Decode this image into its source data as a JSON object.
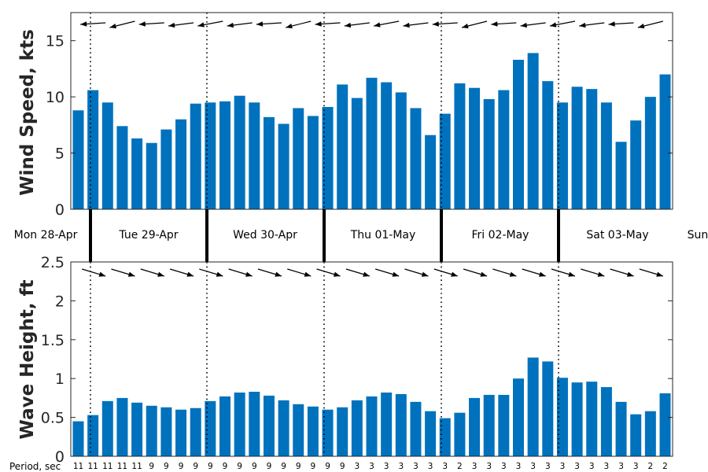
{
  "chart_data": [
    {
      "type": "bar",
      "ylabel": "Wind Speed, kts",
      "ylim": [
        0,
        17.5
      ],
      "yticks": [
        0,
        5,
        10,
        15
      ],
      "bar_color": "#0072BD",
      "values": [
        8.8,
        10.6,
        9.5,
        7.4,
        6.3,
        5.9,
        7.1,
        8.0,
        9.4,
        9.5,
        9.6,
        10.1,
        9.5,
        8.2,
        7.6,
        9.0,
        8.3,
        9.1,
        11.1,
        9.9,
        11.7,
        11.3,
        10.4,
        9.0,
        6.6,
        8.5,
        11.2,
        10.8,
        9.8,
        10.6,
        13.3,
        13.9,
        11.4,
        9.5,
        10.9,
        10.7,
        9.5,
        6.0,
        7.9,
        10.0,
        12.0
      ],
      "direction_arrows": "pointing left (wind from the east)",
      "grid": false
    },
    {
      "type": "bar",
      "ylabel": "Wave Height, ft",
      "ylim": [
        0,
        2.5
      ],
      "yticks": [
        "0",
        "0.5",
        "1",
        "1.5",
        "2",
        "2.5"
      ],
      "bar_color": "#0072BD",
      "values": [
        0.45,
        0.53,
        0.71,
        0.75,
        0.69,
        0.65,
        0.63,
        0.6,
        0.62,
        0.71,
        0.77,
        0.82,
        0.83,
        0.78,
        0.72,
        0.67,
        0.64,
        0.6,
        0.63,
        0.72,
        0.77,
        0.82,
        0.8,
        0.7,
        0.58,
        0.49,
        0.56,
        0.75,
        0.79,
        0.79,
        1.0,
        1.27,
        1.22,
        1.01,
        0.95,
        0.96,
        0.89,
        0.7,
        0.54,
        0.58,
        0.81
      ],
      "period_label": "Period, sec",
      "periods": [
        "11",
        "11",
        "11",
        "11",
        "11",
        "9",
        "9",
        "9",
        "9",
        "9",
        "9",
        "9",
        "9",
        "9",
        "9",
        "9",
        "9",
        "9",
        "9",
        "3",
        "3",
        "3",
        "3",
        "3",
        "3",
        "3",
        "2",
        "3",
        "3",
        "3",
        "3",
        "3",
        "3",
        "3",
        "3",
        "3",
        "3",
        "3",
        "3",
        "2",
        "2"
      ],
      "direction_arrows": "pointing down-right",
      "grid": false
    }
  ],
  "days": [
    "Mon 28-Apr",
    "Tue 29-Apr",
    "Wed 30-Apr",
    "Thu 01-May",
    "Fri 02-May",
    "Sat 03-May",
    "Sun"
  ]
}
